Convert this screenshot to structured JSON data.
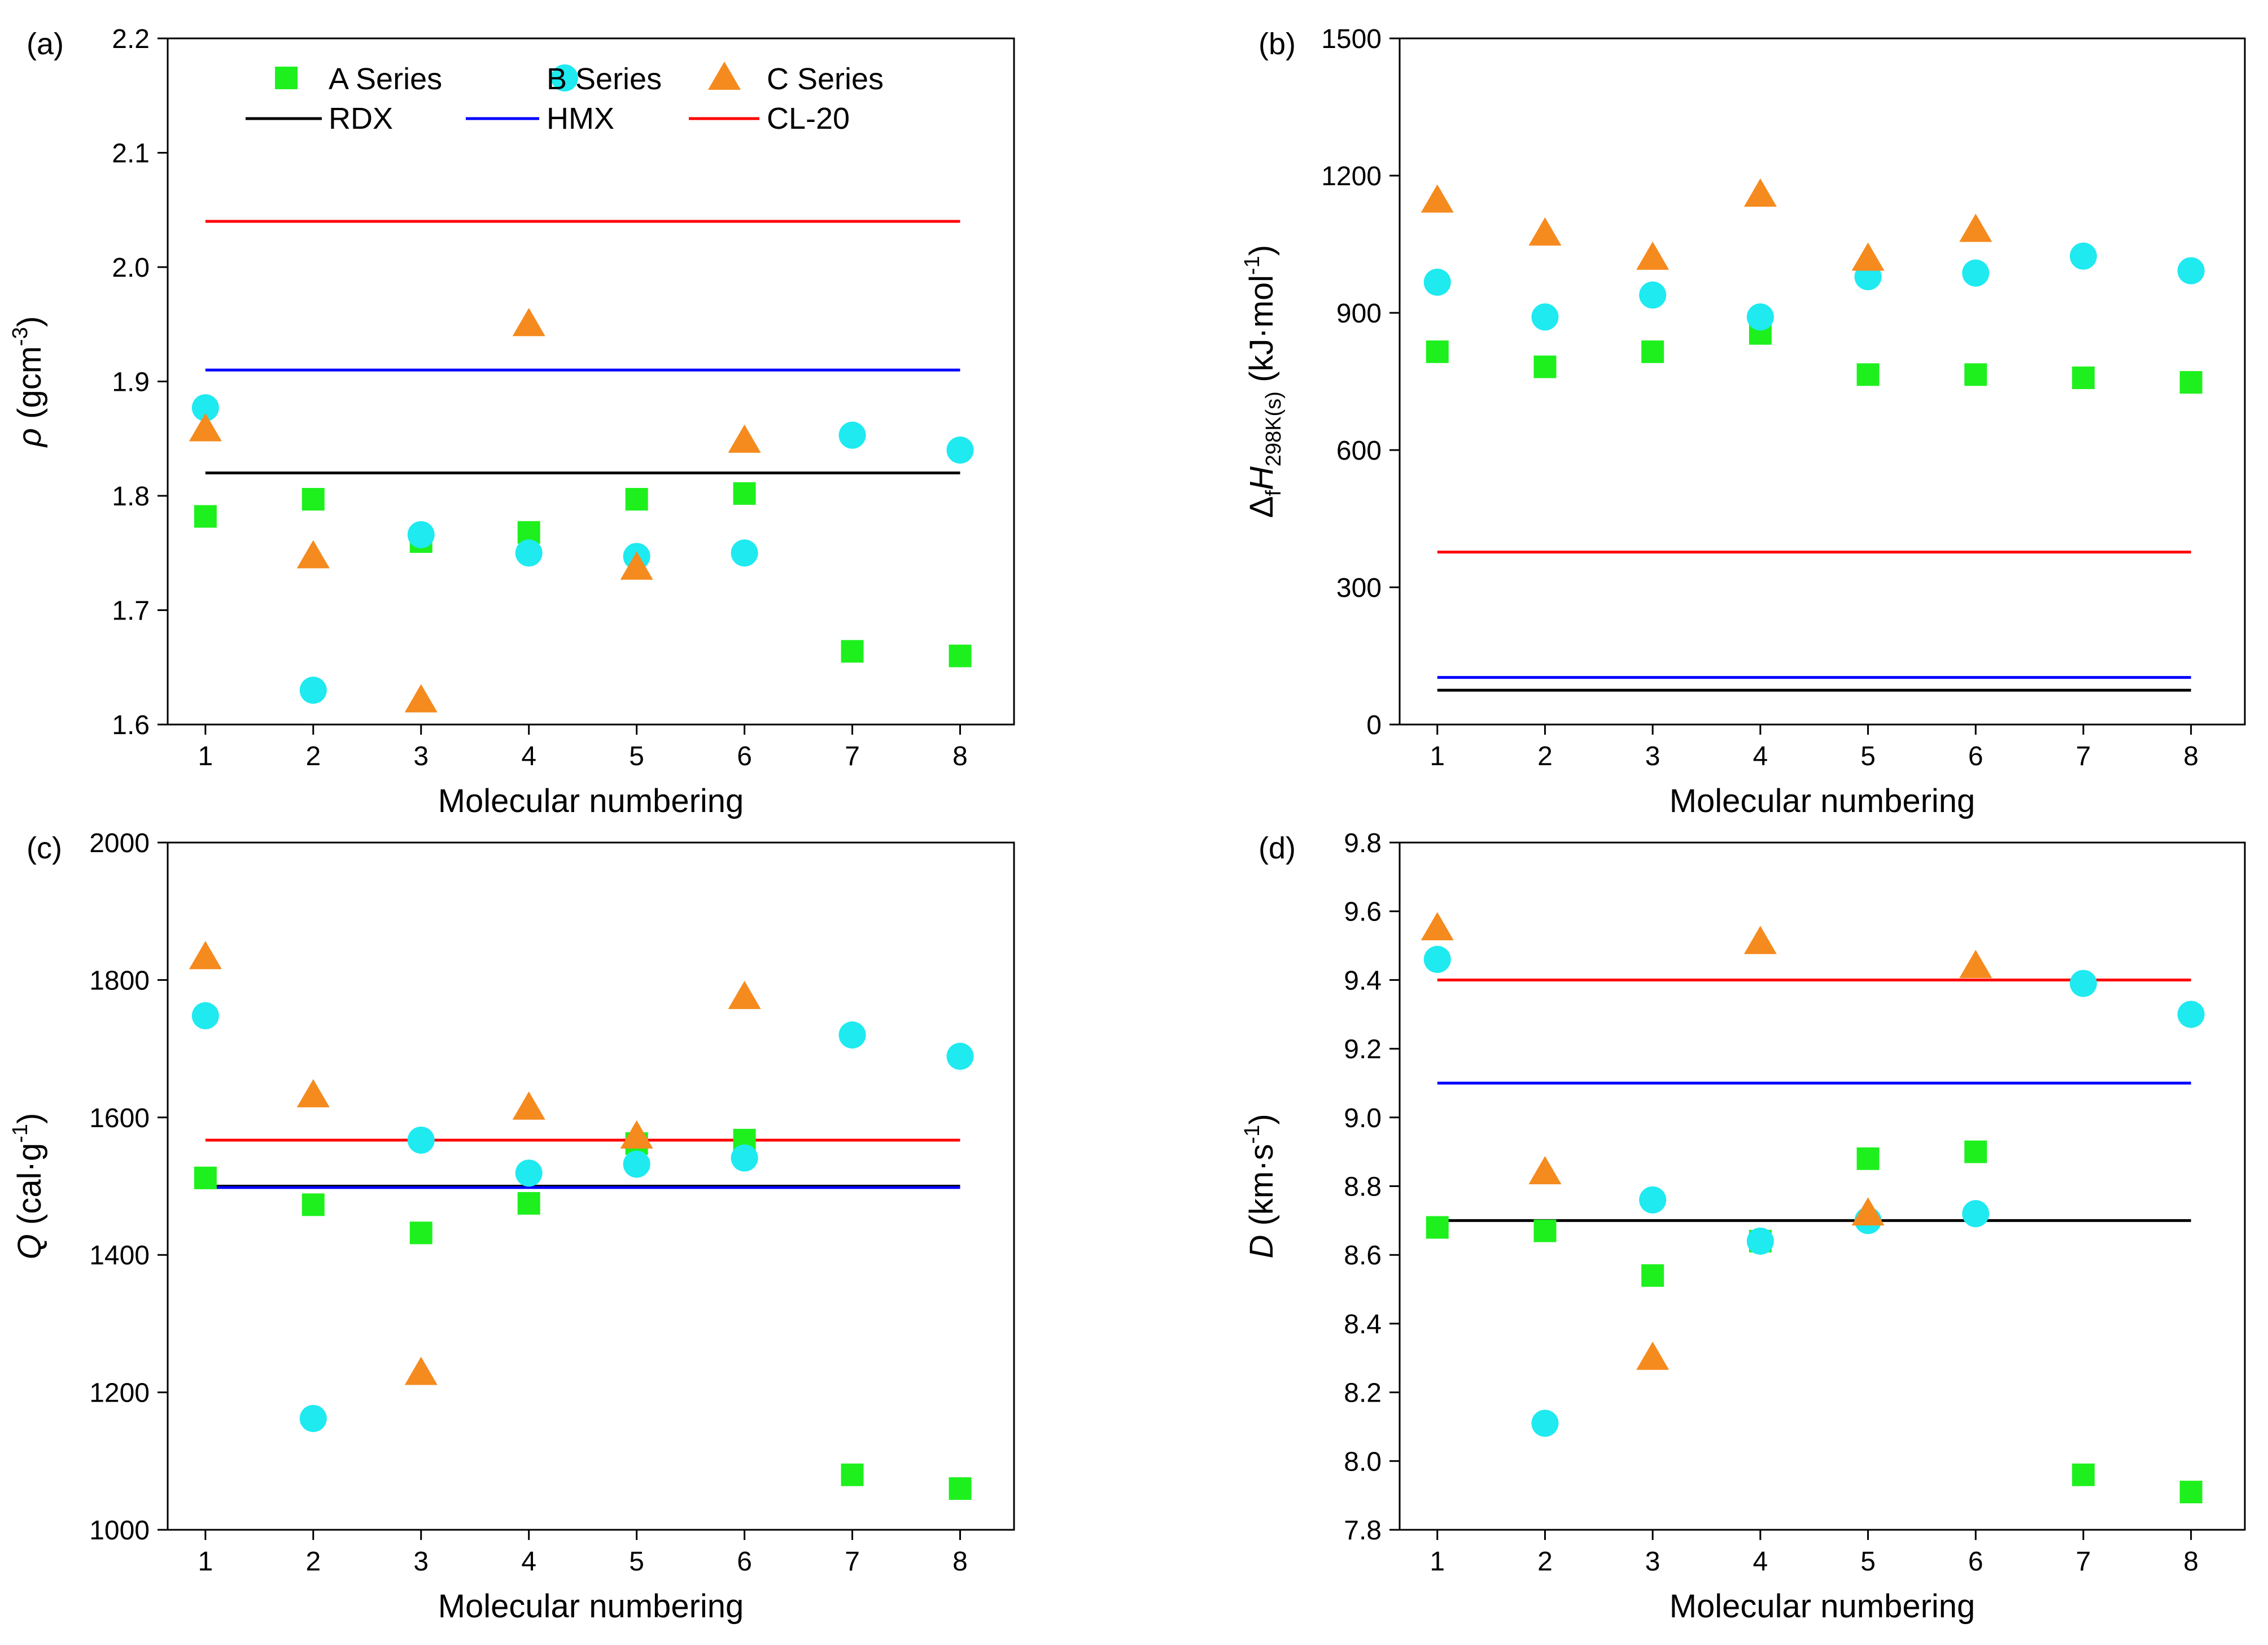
{
  "styles": {
    "A_color": "#1EF01E",
    "B_color": "#1EEAF0",
    "C_color": "#F58A1E",
    "RDX_color": "#000000",
    "HMX_color": "#0000FF",
    "CL20_color": "#FF0000"
  },
  "chart_data": [
    {
      "type": "scatter",
      "panel": "(a)",
      "title": "",
      "xlabel": "Molecular numbering",
      "ylabel": {
        "symbol": "ρ",
        "unit": "(gcm",
        "sup": "-3",
        "close": ")"
      },
      "xlim": [
        0.65,
        8.5
      ],
      "ylim": [
        1.6,
        2.2
      ],
      "xticks": [
        1,
        2,
        3,
        4,
        5,
        6,
        7,
        8
      ],
      "xtick_labels": [
        "1",
        "2",
        "3",
        "4",
        "5",
        "6",
        "7",
        "8"
      ],
      "yticks": [
        1.6,
        1.7,
        1.8,
        1.9,
        2.0,
        2.1,
        2.2
      ],
      "ytick_labels": [
        "1.6",
        "1.7",
        "1.8",
        "1.9",
        "2.0",
        "2.1",
        "2.2"
      ],
      "series": [
        {
          "name": "A Series",
          "marker": "square",
          "x": [
            1,
            2,
            3,
            4,
            5,
            6,
            7,
            8
          ],
          "values": [
            1.782,
            1.797,
            1.76,
            1.768,
            1.797,
            1.802,
            1.664,
            1.66
          ]
        },
        {
          "name": "B Series",
          "marker": "circle",
          "x": [
            1,
            2,
            3,
            4,
            5,
            6,
            7,
            8
          ],
          "values": [
            1.877,
            1.63,
            1.766,
            1.75,
            1.747,
            1.75,
            1.853,
            1.84
          ]
        },
        {
          "name": "C Series",
          "marker": "triangle",
          "x": [
            1,
            2,
            3,
            4,
            5,
            6
          ],
          "values": [
            1.858,
            1.747,
            1.621,
            1.95,
            1.737,
            1.848
          ]
        }
      ],
      "reference_lines": [
        {
          "name": "RDX",
          "value": 1.82,
          "x_range": [
            1,
            8
          ]
        },
        {
          "name": "HMX",
          "value": 1.91,
          "x_range": [
            1,
            8
          ]
        },
        {
          "name": "CL-20",
          "value": 2.04,
          "x_range": [
            1,
            8
          ]
        }
      ],
      "legend": {
        "position": "top",
        "items": [
          "A Series",
          "B Series",
          "C Series",
          "RDX",
          "HMX",
          "CL-20"
        ]
      }
    },
    {
      "type": "scatter",
      "panel": "(b)",
      "title": "",
      "xlabel": "Molecular numbering",
      "ylabel": {
        "prefix": "Δ",
        "prefix_sub": "f",
        "symbol": "H",
        "symbol_sub": "298K(s)",
        "unit": " (kJ·mol",
        "sup": "-1",
        "close": ")"
      },
      "xlim": [
        0.65,
        8.5
      ],
      "ylim": [
        0,
        1500
      ],
      "xticks": [
        1,
        2,
        3,
        4,
        5,
        6,
        7,
        8
      ],
      "xtick_labels": [
        "1",
        "2",
        "3",
        "4",
        "5",
        "6",
        "7",
        "8"
      ],
      "yticks": [
        0,
        300,
        600,
        900,
        1200,
        1500
      ],
      "ytick_labels": [
        "0",
        "300",
        "600",
        "900",
        "1200",
        "1500"
      ],
      "series": [
        {
          "name": "A Series",
          "marker": "square",
          "x": [
            1,
            2,
            3,
            4,
            5,
            6,
            7,
            8
          ],
          "values": [
            815,
            782,
            815,
            855,
            765,
            765,
            758,
            748
          ]
        },
        {
          "name": "B Series",
          "marker": "circle",
          "x": [
            1,
            2,
            3,
            4,
            5,
            6,
            7,
            8
          ],
          "values": [
            967,
            891,
            939,
            891,
            979,
            987,
            1024,
            992
          ]
        },
        {
          "name": "C Series",
          "marker": "triangle",
          "x": [
            1,
            2,
            3,
            4,
            5,
            6
          ],
          "values": [
            1145,
            1073,
            1020,
            1158,
            1018,
            1081
          ]
        }
      ],
      "reference_lines": [
        {
          "name": "RDX",
          "value": 75,
          "x_range": [
            1,
            8
          ]
        },
        {
          "name": "HMX",
          "value": 103,
          "x_range": [
            1,
            8
          ]
        },
        {
          "name": "CL-20",
          "value": 377,
          "x_range": [
            1,
            8
          ]
        }
      ]
    },
    {
      "type": "scatter",
      "panel": "(c)",
      "title": "",
      "xlabel": "Molecular numbering",
      "ylabel": {
        "symbol": "Q",
        "unit": " (cal·g",
        "sup": "-1",
        "close": ")"
      },
      "xlim": [
        0.65,
        8.5
      ],
      "ylim": [
        1000,
        2000
      ],
      "xticks": [
        1,
        2,
        3,
        4,
        5,
        6,
        7,
        8
      ],
      "xtick_labels": [
        "1",
        "2",
        "3",
        "4",
        "5",
        "6",
        "7",
        "8"
      ],
      "yticks": [
        1000,
        1200,
        1400,
        1600,
        1800,
        2000
      ],
      "ytick_labels": [
        "1000",
        "1200",
        "1400",
        "1600",
        "1800",
        "2000"
      ],
      "series": [
        {
          "name": "A Series",
          "marker": "square",
          "x": [
            1,
            2,
            3,
            4,
            5,
            6,
            7,
            8
          ],
          "values": [
            1512,
            1473,
            1432,
            1475,
            1562,
            1567,
            1080,
            1060
          ]
        },
        {
          "name": "B Series",
          "marker": "circle",
          "x": [
            1,
            2,
            3,
            4,
            5,
            6,
            7,
            8
          ],
          "values": [
            1748,
            1162,
            1567,
            1519,
            1532,
            1541,
            1720,
            1689
          ]
        },
        {
          "name": "C Series",
          "marker": "triangle",
          "x": [
            1,
            2,
            3,
            4,
            5,
            6
          ],
          "values": [
            1833,
            1632,
            1228,
            1614,
            1572,
            1775
          ]
        }
      ],
      "reference_lines": [
        {
          "name": "RDX",
          "value": 1500,
          "x_range": [
            1,
            8
          ]
        },
        {
          "name": "HMX",
          "value": 1498,
          "x_range": [
            1,
            8
          ]
        },
        {
          "name": "CL-20",
          "value": 1567,
          "x_range": [
            1,
            8
          ]
        }
      ]
    },
    {
      "type": "scatter",
      "panel": "(d)",
      "title": "",
      "xlabel": "Molecular numbering",
      "ylabel": {
        "symbol": "D",
        "unit": " (km·s",
        "sup": "-1",
        "close": ")"
      },
      "xlim": [
        0.65,
        8.5
      ],
      "ylim": [
        7.8,
        9.8
      ],
      "xticks": [
        1,
        2,
        3,
        4,
        5,
        6,
        7,
        8
      ],
      "xtick_labels": [
        "1",
        "2",
        "3",
        "4",
        "5",
        "6",
        "7",
        "8"
      ],
      "yticks": [
        7.8,
        8.0,
        8.2,
        8.4,
        8.6,
        8.8,
        9.0,
        9.2,
        9.4,
        9.6,
        9.8
      ],
      "ytick_labels": [
        "7.8",
        "8.0",
        "8.2",
        "8.4",
        "8.6",
        "8.8",
        "9.0",
        "9.2",
        "9.4",
        "9.6",
        "9.8"
      ],
      "series": [
        {
          "name": "A Series",
          "marker": "square",
          "x": [
            1,
            2,
            3,
            4,
            5,
            6,
            7,
            8
          ],
          "values": [
            8.68,
            8.67,
            8.54,
            8.64,
            8.88,
            8.9,
            7.96,
            7.91
          ]
        },
        {
          "name": "B Series",
          "marker": "circle",
          "x": [
            1,
            2,
            3,
            4,
            5,
            6,
            7,
            8
          ],
          "values": [
            9.46,
            8.11,
            8.76,
            8.64,
            8.7,
            8.72,
            9.39,
            9.3
          ]
        },
        {
          "name": "C Series",
          "marker": "triangle",
          "x": [
            1,
            2,
            3,
            4,
            5,
            6
          ],
          "values": [
            9.55,
            8.84,
            8.3,
            9.51,
            8.72,
            9.44
          ]
        }
      ],
      "reference_lines": [
        {
          "name": "RDX",
          "value": 8.7,
          "x_range": [
            1,
            8
          ]
        },
        {
          "name": "HMX",
          "value": 9.1,
          "x_range": [
            1,
            8
          ]
        },
        {
          "name": "CL-20",
          "value": 9.4,
          "x_range": [
            1,
            8
          ]
        }
      ]
    }
  ]
}
